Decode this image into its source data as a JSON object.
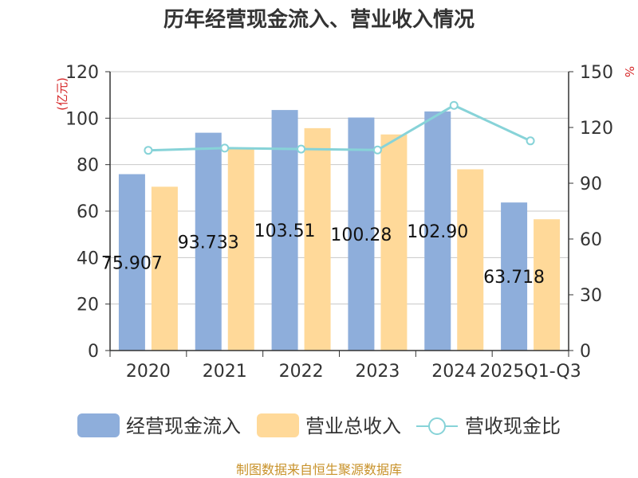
{
  "title": "历年经营现金流入、营业收入情况",
  "source": "制图数据来自恒生聚源数据库",
  "colors": {
    "cash_inflow": "#8eaedb",
    "revenue": "#ffd999",
    "ratio": "#87d3d8",
    "unit": "#d62728",
    "source": "#c8922a"
  },
  "chart_data": {
    "type": "bar",
    "title": "历年经营现金流入、营业收入情况",
    "categories": [
      "2020",
      "2021",
      "2022",
      "2023",
      "2024",
      "2025Q1-Q3"
    ],
    "left_axis": {
      "unit_label": "(亿元)",
      "ticks": [
        "0",
        "20",
        "40",
        "60",
        "80",
        "100",
        "120"
      ],
      "ylim": [
        0,
        120
      ]
    },
    "right_axis": {
      "unit_label": "%",
      "ticks": [
        "0",
        "30",
        "60",
        "90",
        "120",
        "150"
      ],
      "ylim": [
        0,
        150
      ]
    },
    "series": [
      {
        "name": "经营现金流入",
        "type": "bar",
        "axis": "left",
        "values": [
          75.907,
          93.733,
          103.51,
          100.28,
          102.9,
          63.718
        ],
        "labels": [
          "75.907",
          "93.733",
          "103.51",
          "100.28",
          "102.90",
          "63.718"
        ]
      },
      {
        "name": "营业总收入",
        "type": "bar",
        "axis": "left",
        "values": [
          70.5,
          87.0,
          95.7,
          93.0,
          78.0,
          56.5
        ]
      },
      {
        "name": "营收现金比",
        "type": "line",
        "axis": "right",
        "values": [
          107.7,
          108.9,
          108.4,
          107.9,
          131.9,
          112.8
        ]
      }
    ],
    "legend_position": "bottom"
  }
}
